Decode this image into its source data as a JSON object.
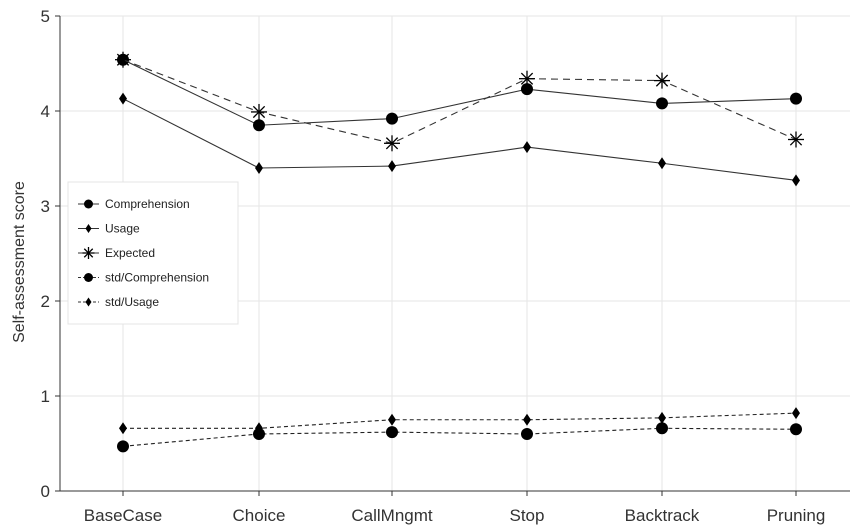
{
  "chart_data": {
    "type": "line",
    "categories": [
      "BaseCase",
      "Choice",
      "CallMngmt",
      "Stop",
      "Backtrack",
      "Pruning"
    ],
    "ylabel": "Self-assessment score",
    "xlabel": "",
    "ylim": [
      0,
      5
    ],
    "yticks": [
      0,
      1,
      2,
      3,
      4,
      5
    ],
    "grid": true,
    "legend_position": "left",
    "series": [
      {
        "name": "Comprehension",
        "marker": "circle",
        "line": "solid",
        "values": [
          4.54,
          3.85,
          3.92,
          4.23,
          4.08,
          4.13
        ]
      },
      {
        "name": "Usage",
        "marker": "diamond",
        "line": "solid",
        "values": [
          4.13,
          3.4,
          3.42,
          3.62,
          3.45,
          3.27
        ]
      },
      {
        "name": "Expected",
        "marker": "asterisk",
        "line": "dashed",
        "values": [
          4.54,
          3.99,
          3.66,
          4.34,
          4.32,
          3.7
        ]
      },
      {
        "name": "std/Comprehension",
        "marker": "circle",
        "line": "dotted",
        "values": [
          0.47,
          0.6,
          0.62,
          0.6,
          0.66,
          0.65
        ]
      },
      {
        "name": "std/Usage",
        "marker": "diamond",
        "line": "dotted",
        "values": [
          0.66,
          0.66,
          0.75,
          0.75,
          0.77,
          0.82
        ]
      }
    ]
  }
}
